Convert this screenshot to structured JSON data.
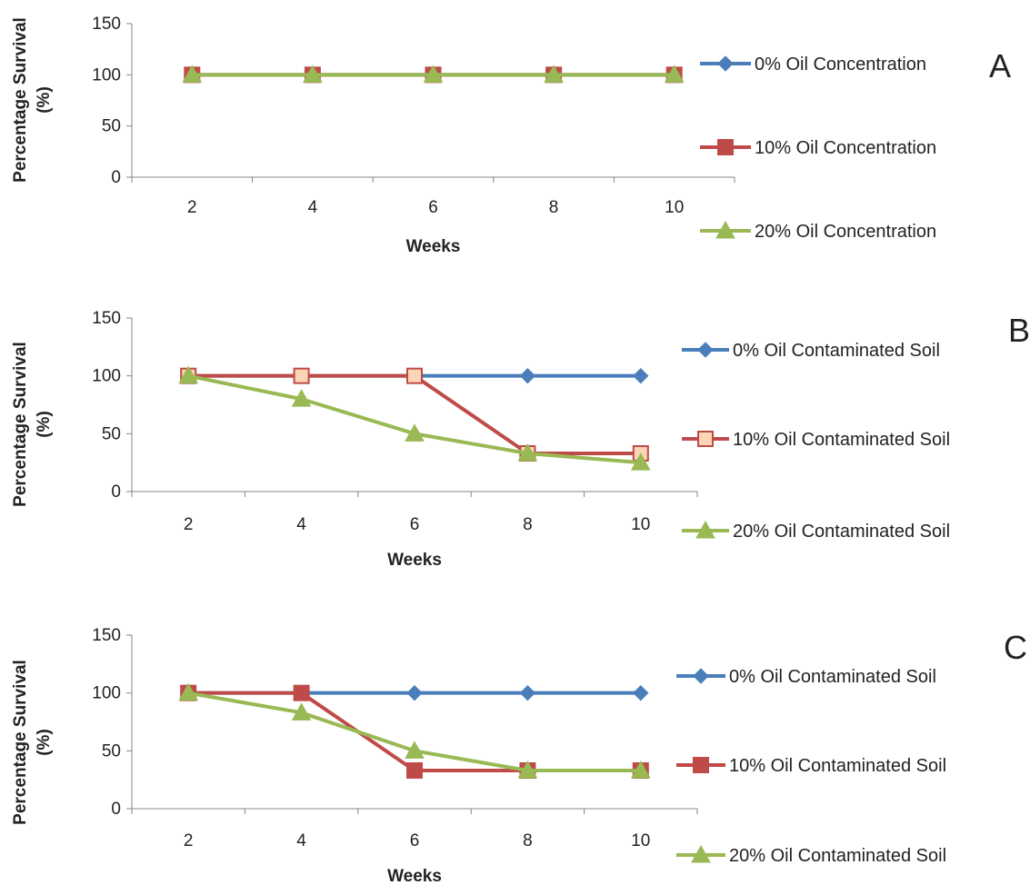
{
  "chart_data": [
    {
      "type": "line",
      "panel_label": "A",
      "xlabel": "Weeks",
      "ylabel_lines": [
        "Percentage Survival",
        "(%)"
      ],
      "categories": [
        2,
        4,
        6,
        8,
        10
      ],
      "x_tick_labels": [
        "2",
        "4",
        "6",
        "8",
        "10"
      ],
      "ylim": [
        0,
        150
      ],
      "y_ticks": [
        0,
        50,
        100,
        150
      ],
      "grid": false,
      "legend_position": "right",
      "series": [
        {
          "name": "0% Oil Concentration",
          "values": [
            100,
            100,
            100,
            100,
            100
          ],
          "color": "#4a7ebb",
          "marker": "diamond",
          "marker_fill": "#4a7ebb"
        },
        {
          "name": "10% Oil Concentration",
          "values": [
            100,
            100,
            100,
            100,
            100
          ],
          "color": "#be4b48",
          "marker": "square",
          "marker_fill": "#be4b48"
        },
        {
          "name": "20% Oil Concentration",
          "values": [
            100,
            100,
            100,
            100,
            100
          ],
          "color": "#98b954",
          "marker": "triangle",
          "marker_fill": "#98b954"
        }
      ]
    },
    {
      "type": "line",
      "panel_label": "B",
      "xlabel": "Weeks",
      "ylabel_lines": [
        "Percentage Survival",
        "(%)"
      ],
      "categories": [
        2,
        4,
        6,
        8,
        10
      ],
      "x_tick_labels": [
        "2",
        "4",
        "6",
        "8",
        "10"
      ],
      "ylim": [
        0,
        150
      ],
      "y_ticks": [
        0,
        50,
        100,
        150
      ],
      "grid": false,
      "legend_position": "right",
      "series": [
        {
          "name": "0% Oil Contaminated Soil",
          "values": [
            100,
            100,
            100,
            100,
            100
          ],
          "color": "#4a7ebb",
          "marker": "diamond",
          "marker_fill": "#4a7ebb"
        },
        {
          "name": "10% Oil Contaminated Soil",
          "values": [
            100,
            100,
            100,
            33,
            33
          ],
          "color": "#be4b48",
          "marker": "square",
          "marker_fill": "#fcd5b5"
        },
        {
          "name": "20% Oil Contaminated Soil",
          "values": [
            100,
            80,
            50,
            33,
            25
          ],
          "color": "#98b954",
          "marker": "triangle",
          "marker_fill": "#98b954"
        }
      ]
    },
    {
      "type": "line",
      "panel_label": "C",
      "xlabel": "Weeks",
      "ylabel_lines": [
        "Percentage Survival",
        "(%)"
      ],
      "categories": [
        2,
        4,
        6,
        8,
        10
      ],
      "x_tick_labels": [
        "2",
        "4",
        "6",
        "8",
        "10"
      ],
      "ylim": [
        0,
        150
      ],
      "y_ticks": [
        0,
        50,
        100,
        150
      ],
      "grid": false,
      "legend_position": "right",
      "series": [
        {
          "name": "0% Oil Contaminated Soil",
          "values": [
            100,
            100,
            100,
            100,
            100
          ],
          "color": "#4a7ebb",
          "marker": "diamond",
          "marker_fill": "#4a7ebb"
        },
        {
          "name": "10% Oil Contaminated Soil",
          "values": [
            100,
            100,
            33,
            33,
            33
          ],
          "color": "#be4b48",
          "marker": "square",
          "marker_fill": "#be4b48"
        },
        {
          "name": "20% Oil Contaminated Soil",
          "values": [
            100,
            83,
            50,
            33,
            33
          ],
          "color": "#98b954",
          "marker": "triangle",
          "marker_fill": "#98b954"
        }
      ]
    }
  ]
}
